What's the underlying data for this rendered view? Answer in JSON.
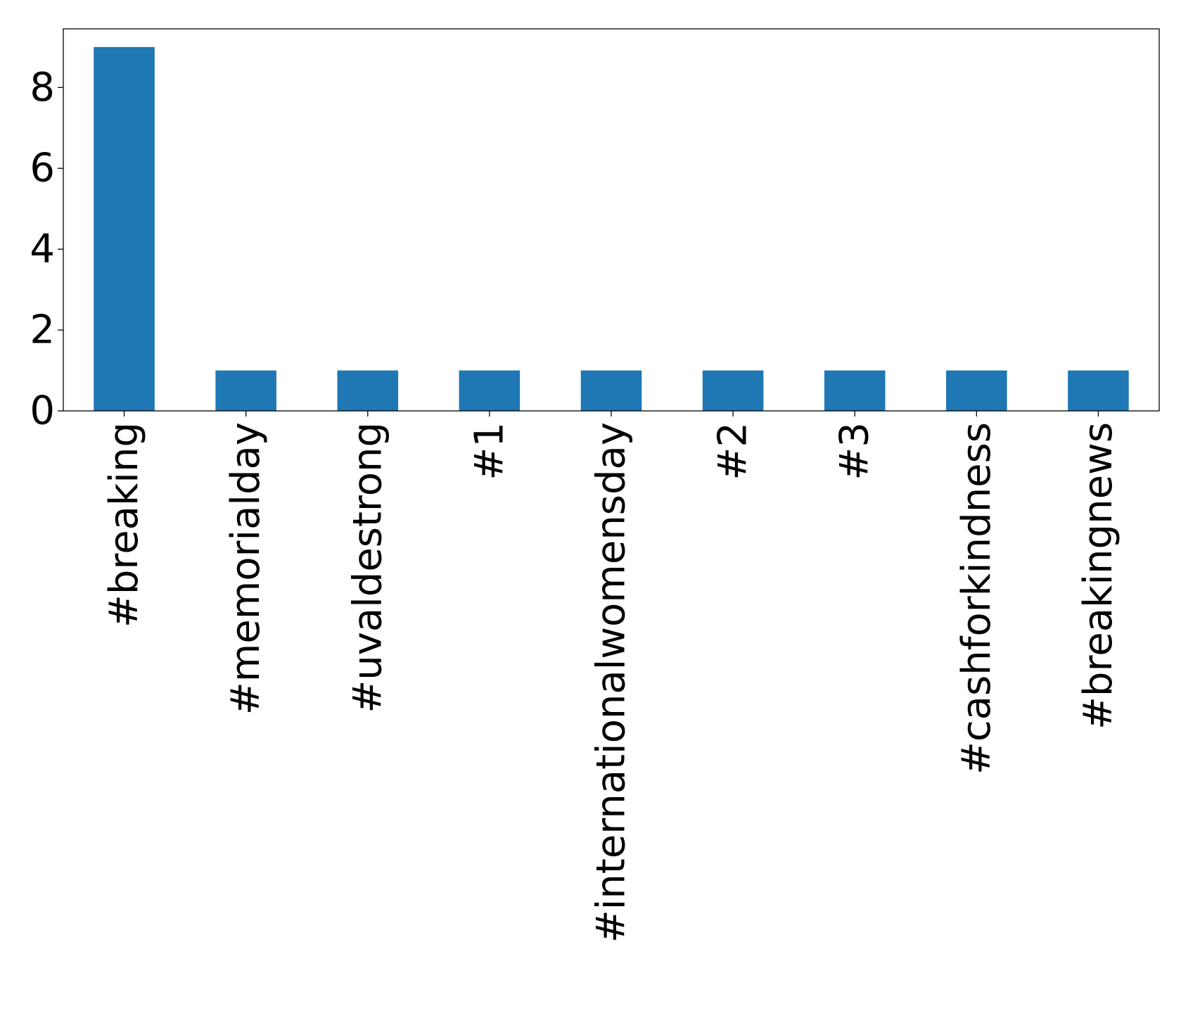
{
  "chart_data": {
    "type": "bar",
    "title": "",
    "xlabel": "",
    "ylabel": "",
    "categories": [
      "#breaking",
      "#memorialday",
      "#uvaldestrong",
      "#1",
      "#internationalwomensday",
      "#2",
      "#3",
      "#cashforkindness",
      "#breakingnews"
    ],
    "values": [
      9,
      1,
      1,
      1,
      1,
      1,
      1,
      1,
      1
    ],
    "ylim": [
      0,
      9.45
    ],
    "yticks": [
      0,
      2,
      4,
      6,
      8
    ],
    "bar_color": "#1f77b4",
    "grid": false,
    "legend": false
  }
}
